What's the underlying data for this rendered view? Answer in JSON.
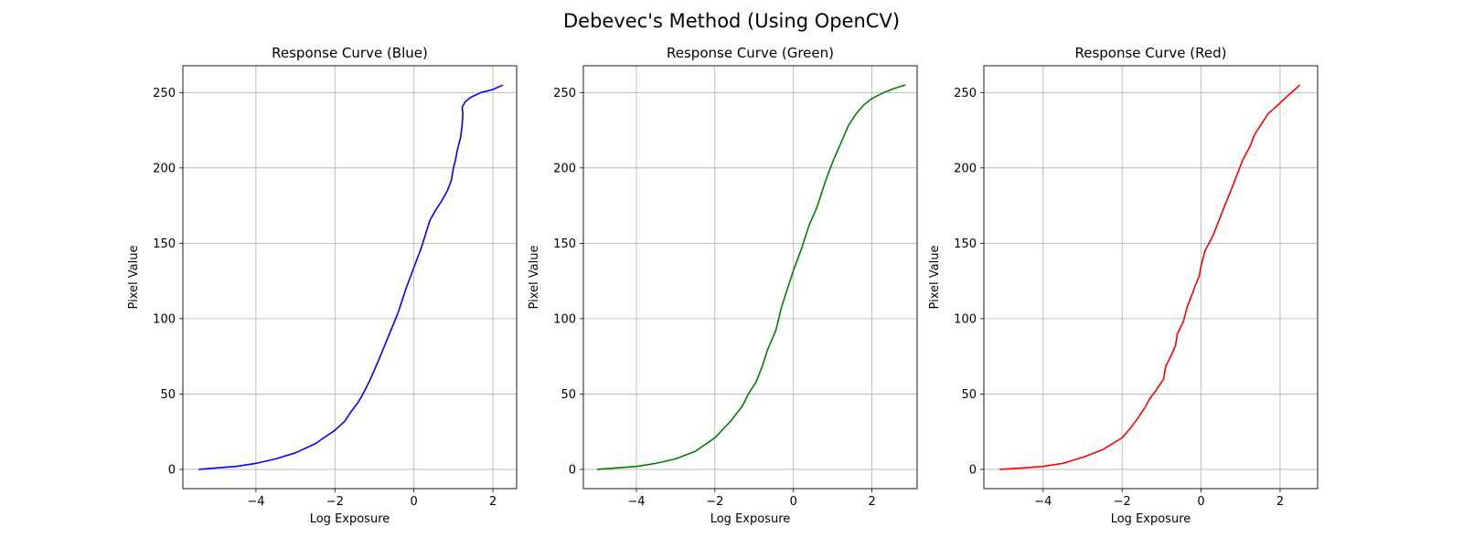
{
  "figure": {
    "title": "Debevec's Method (Using OpenCV)"
  },
  "chart_data": [
    {
      "type": "line",
      "title": "Response Curve (Blue)",
      "xlabel": "Log Exposure",
      "ylabel": "Pixel Value",
      "xlim": [
        -5.85,
        2.6
      ],
      "ylim": [
        -12.75,
        267.75
      ],
      "xticks": [
        -4,
        -2,
        0,
        2
      ],
      "xtick_labels": [
        "−4",
        "−2",
        "0",
        "2"
      ],
      "yticks": [
        0,
        50,
        100,
        150,
        200,
        250
      ],
      "ytick_labels": [
        "0",
        "50",
        "100",
        "150",
        "200",
        "250"
      ],
      "grid": true,
      "color": "#0000ff",
      "series": [
        {
          "x": [
            -5.45,
            -5.0,
            -4.5,
            -4.0,
            -3.5,
            -3.0,
            -2.5,
            -2.0,
            -1.75,
            -1.6,
            -1.4,
            -1.25,
            -1.1,
            -0.9,
            -0.65,
            -0.4,
            -0.2,
            0.0,
            0.2,
            0.4,
            0.55,
            0.7,
            0.85,
            0.95,
            1.0,
            1.05,
            1.1,
            1.18,
            1.22,
            1.24,
            1.22,
            1.3,
            1.45,
            1.7,
            2.0,
            2.25
          ],
          "y": [
            0,
            1,
            2,
            4,
            7,
            11,
            17,
            26,
            32,
            38,
            45,
            52,
            60,
            72,
            88,
            104,
            120,
            134,
            148,
            165,
            172,
            178,
            185,
            192,
            200,
            205,
            212,
            220,
            228,
            236,
            240,
            244,
            247,
            250,
            252,
            255
          ]
        }
      ]
    },
    {
      "type": "line",
      "title": "Response Curve (Green)",
      "xlabel": "Log Exposure",
      "ylabel": "Pixel Value",
      "xlim": [
        -5.35,
        3.15
      ],
      "ylim": [
        -12.75,
        267.75
      ],
      "xticks": [
        -4,
        -2,
        0,
        2
      ],
      "xtick_labels": [
        "−4",
        "−2",
        "0",
        "2"
      ],
      "yticks": [
        0,
        50,
        100,
        150,
        200,
        250
      ],
      "ytick_labels": [
        "0",
        "50",
        "100",
        "150",
        "200",
        "250"
      ],
      "grid": true,
      "color": "#008000",
      "series": [
        {
          "x": [
            -5.0,
            -4.5,
            -4.0,
            -3.5,
            -3.0,
            -2.5,
            -2.0,
            -1.6,
            -1.3,
            -1.15,
            -0.95,
            -0.8,
            -0.65,
            -0.45,
            -0.3,
            -0.15,
            0.0,
            0.2,
            0.4,
            0.6,
            0.8,
            1.0,
            1.2,
            1.4,
            1.6,
            1.8,
            2.0,
            2.3,
            2.6,
            2.85
          ],
          "y": [
            0,
            1,
            2,
            4,
            7,
            12,
            21,
            32,
            42,
            50,
            58,
            68,
            80,
            92,
            108,
            120,
            132,
            146,
            162,
            174,
            190,
            204,
            216,
            228,
            236,
            242,
            246,
            250,
            253,
            255
          ]
        }
      ]
    },
    {
      "type": "line",
      "title": "Response Curve (Red)",
      "xlabel": "Log Exposure",
      "ylabel": "Pixel Value",
      "xlim": [
        -5.5,
        2.95
      ],
      "ylim": [
        -12.75,
        267.75
      ],
      "xticks": [
        -4,
        -2,
        0,
        2
      ],
      "xtick_labels": [
        "−4",
        "−2",
        "0",
        "2"
      ],
      "yticks": [
        0,
        50,
        100,
        150,
        200,
        250
      ],
      "ytick_labels": [
        "0",
        "50",
        "100",
        "150",
        "200",
        "250"
      ],
      "grid": true,
      "color": "#ff0000",
      "series": [
        {
          "x": [
            -5.1,
            -4.5,
            -4.0,
            -3.5,
            -3.0,
            -2.5,
            -2.0,
            -1.8,
            -1.6,
            -1.5,
            -1.4,
            -1.3,
            -1.15,
            -0.95,
            -0.9,
            -0.75,
            -0.65,
            -0.6,
            -0.45,
            -0.35,
            -0.2,
            -0.15,
            -0.05,
            0.0,
            0.1,
            0.3,
            0.45,
            0.6,
            0.8,
            1.05,
            1.25,
            1.35,
            1.5,
            1.7,
            2.0,
            2.2,
            2.5
          ],
          "y": [
            0,
            1,
            2,
            4,
            8,
            13,
            21,
            27,
            34,
            38,
            42,
            47,
            52,
            60,
            68,
            76,
            82,
            90,
            98,
            108,
            118,
            122,
            128,
            135,
            145,
            155,
            165,
            175,
            188,
            205,
            215,
            222,
            228,
            236,
            243,
            248,
            255
          ]
        }
      ]
    }
  ]
}
